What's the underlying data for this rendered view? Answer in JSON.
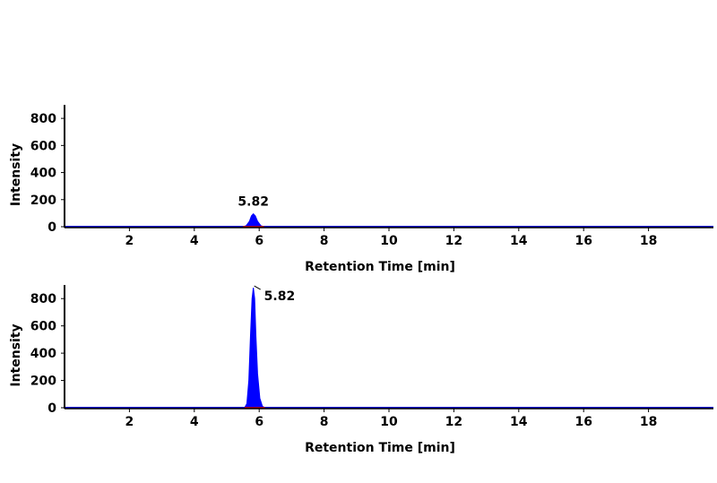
{
  "chart_data": [
    {
      "type": "area",
      "xlabel": "Retention Time [min]",
      "ylabel": "Intensity",
      "xlim": [
        0,
        20
      ],
      "ylim": [
        0,
        900
      ],
      "x_ticks": [
        2,
        4,
        6,
        8,
        10,
        12,
        14,
        16,
        18
      ],
      "y_ticks": [
        0,
        200,
        400,
        600,
        800
      ],
      "series": [
        {
          "x": [
            0,
            5.5,
            5.6,
            5.7,
            5.76,
            5.82,
            5.88,
            5.95,
            6.05,
            6.15,
            20
          ],
          "y": [
            0,
            0,
            8,
            40,
            80,
            95,
            80,
            40,
            8,
            0,
            0
          ]
        }
      ],
      "annotations": [
        {
          "x": 5.82,
          "y": 95,
          "text": "5.82"
        }
      ],
      "colors": {
        "fill": "#0000ff",
        "baseline": "#0000cc",
        "axis": "#000000",
        "marker": "#cc0000"
      }
    },
    {
      "type": "area",
      "xlabel": "Retention Time [min]",
      "ylabel": "Intensity",
      "xlim": [
        0,
        20
      ],
      "ylim": [
        0,
        900
      ],
      "x_ticks": [
        2,
        4,
        6,
        8,
        10,
        12,
        14,
        16,
        18
      ],
      "y_ticks": [
        0,
        200,
        400,
        600,
        800
      ],
      "series": [
        {
          "x": [
            0,
            5.55,
            5.62,
            5.68,
            5.73,
            5.78,
            5.82,
            5.86,
            5.9,
            5.95,
            6.02,
            6.1,
            6.18,
            20
          ],
          "y": [
            0,
            0,
            30,
            200,
            520,
            800,
            880,
            800,
            520,
            250,
            70,
            10,
            0,
            0
          ]
        }
      ],
      "annotations": [
        {
          "x": 5.82,
          "y": 880,
          "text": "5.82"
        }
      ],
      "colors": {
        "fill": "#0000ff",
        "baseline": "#0000cc",
        "axis": "#000000",
        "marker": "#cc0000"
      }
    }
  ]
}
